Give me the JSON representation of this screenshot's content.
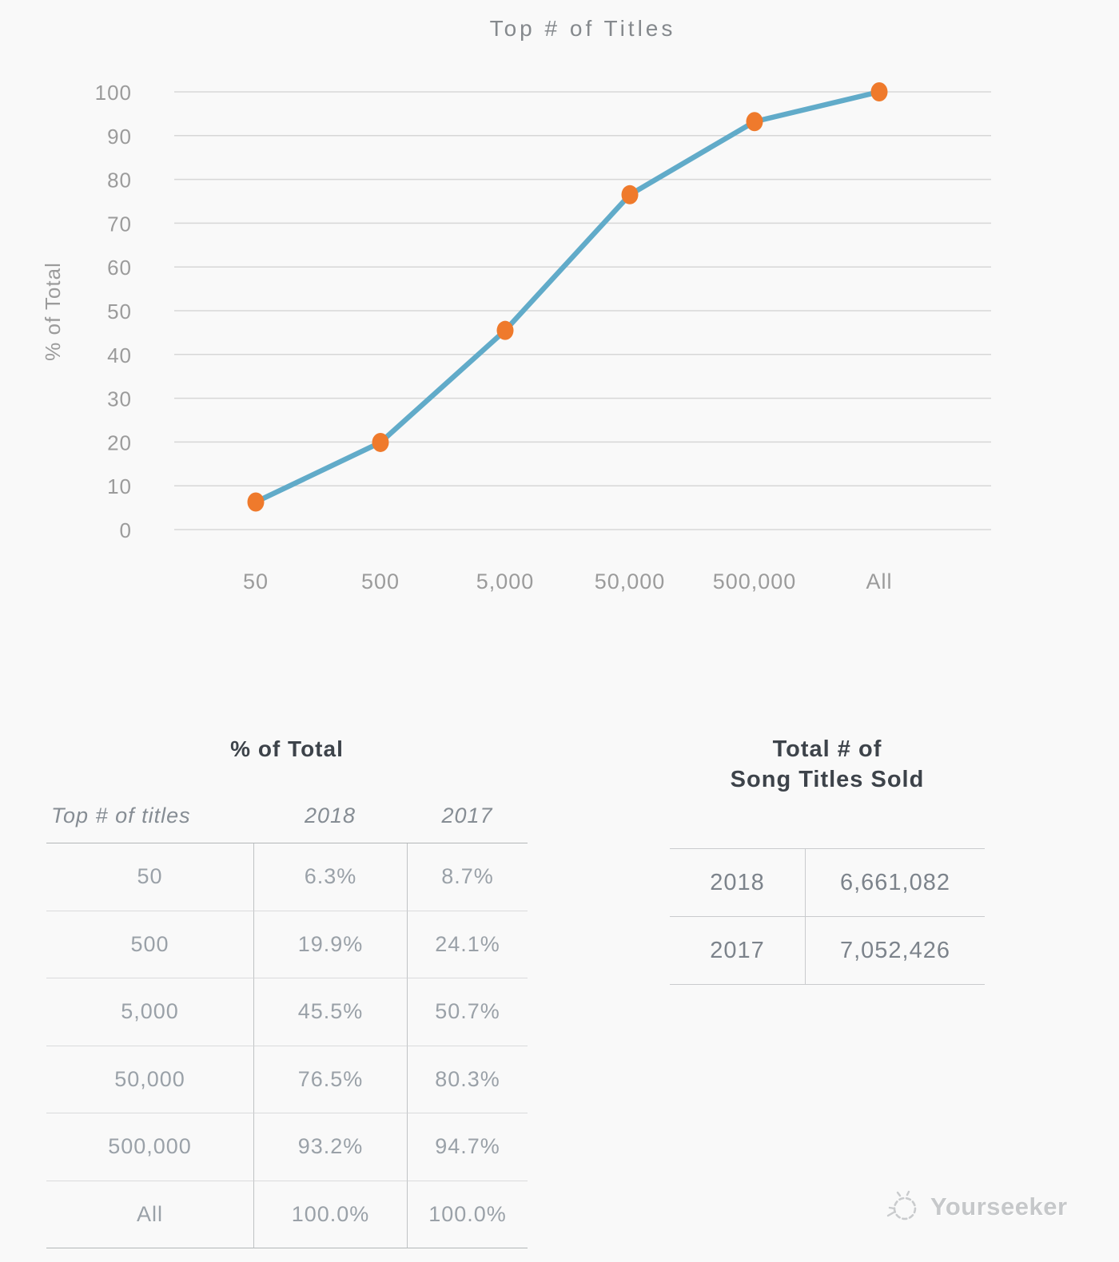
{
  "page": {
    "background": "#f9f9f9"
  },
  "chart_data": {
    "type": "line",
    "title": "Top # of Titles",
    "xlabel": "",
    "ylabel": "% of Total",
    "categories": [
      "50",
      "500",
      "5,000",
      "50,000",
      "500,000",
      "All"
    ],
    "series": [
      {
        "name": "2018",
        "values": [
          6.3,
          19.9,
          45.5,
          76.5,
          93.2,
          100.0
        ]
      }
    ],
    "ylim": [
      0,
      100
    ],
    "ytick_step": 10,
    "grid": true,
    "legend": "none",
    "colors": {
      "line": "#61ABC9",
      "marker": "#EF7A2C",
      "grid": "#d7d7d7",
      "axis_text": "#9b9b9b"
    }
  },
  "tables": {
    "percent_of_total": {
      "title": "% of Total",
      "columns": [
        "Top # of titles",
        "2018",
        "2017"
      ],
      "rows": [
        [
          "50",
          "6.3%",
          "8.7%"
        ],
        [
          "500",
          "19.9%",
          "24.1%"
        ],
        [
          "5,000",
          "45.5%",
          "50.7%"
        ],
        [
          "50,000",
          "76.5%",
          "80.3%"
        ],
        [
          "500,000",
          "93.2%",
          "94.7%"
        ],
        [
          "All",
          "100.0%",
          "100.0%"
        ]
      ]
    },
    "titles_sold": {
      "title_line1": "Total # of",
      "title_line2": "Song Titles Sold",
      "rows": [
        [
          "2018",
          "6,661,082"
        ],
        [
          "2017",
          "7,052,426"
        ]
      ]
    }
  },
  "watermark": {
    "brand": "Yourseeker",
    "icon": "sketch-logo-icon"
  }
}
